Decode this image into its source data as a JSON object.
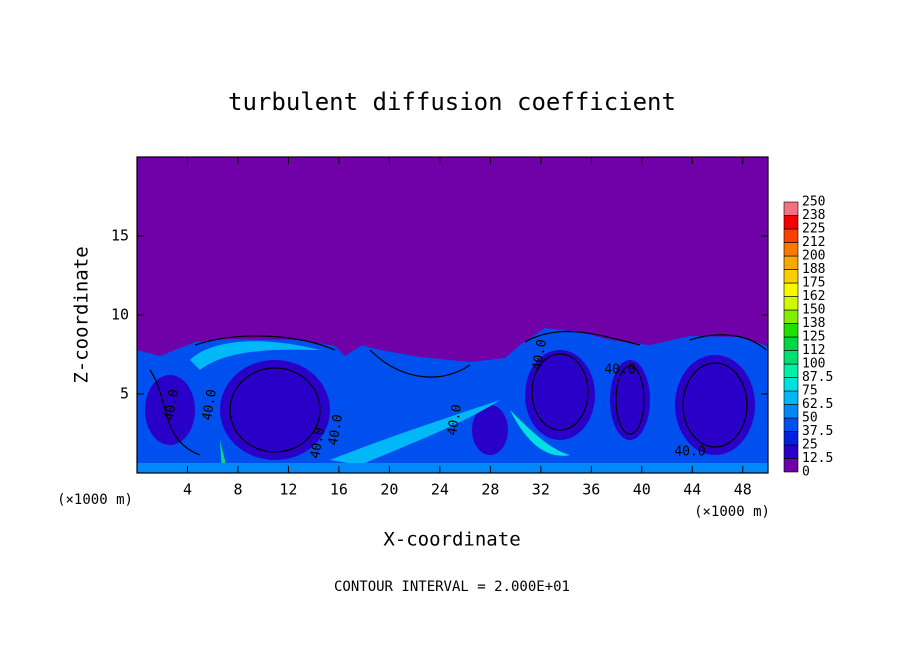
{
  "chart_data": {
    "type": "heatmap",
    "title": "turbulent diffusion coefficient",
    "x_label": "X-coordinate",
    "y_label": "Z-coordinate",
    "x_unit_left": "(×1000 m)",
    "x_unit_right": "(×1000 m)",
    "footer": "CONTOUR INTERVAL = 2.000E+01",
    "xlim": [
      0,
      50
    ],
    "ylim": [
      0,
      20
    ],
    "xticks": [
      4,
      8,
      12,
      16,
      20,
      24,
      28,
      32,
      36,
      40,
      44,
      48
    ],
    "yticks": [
      5,
      10,
      15
    ],
    "contour_labels": [
      "40.0",
      "40.0",
      "40.0",
      "40.0",
      "40.0",
      "40.0",
      "40.0",
      "40.0"
    ],
    "colorbar": {
      "levels": [
        0,
        12.5,
        25,
        37.5,
        50,
        62.5,
        75,
        87.5,
        100,
        112,
        125,
        138,
        150,
        162,
        175,
        188,
        200,
        212,
        225,
        238,
        250
      ],
      "colors": [
        "#7000a8",
        "#2a00c8",
        "#0020e0",
        "#0050f0",
        "#0088f8",
        "#00b8f8",
        "#00e0e0",
        "#00f0a8",
        "#00e070",
        "#00d840",
        "#20e000",
        "#80f000",
        "#d0f800",
        "#f8f800",
        "#f8d000",
        "#f8a800",
        "#f87800",
        "#f84000",
        "#f80000",
        "#f87080"
      ]
    }
  }
}
